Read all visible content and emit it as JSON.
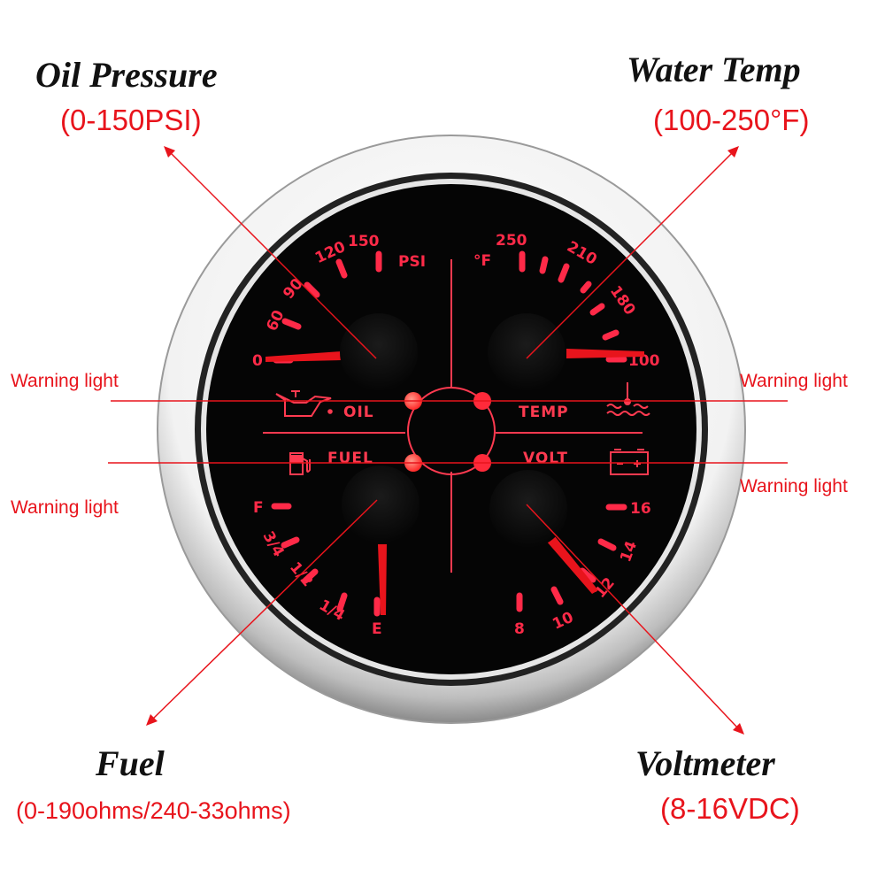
{
  "annotations": {
    "oil": {
      "title": "Oil Pressure",
      "range": "(0-150PSI)"
    },
    "water": {
      "title": "Water Temp",
      "range": "(100-250°F)"
    },
    "fuel": {
      "title": "Fuel",
      "range": "(0-190ohms/240-33ohms)"
    },
    "volt": {
      "title": "Voltmeter",
      "range": "(8-16VDC)"
    },
    "warning_label": "Warning light"
  },
  "gauge": {
    "oil": {
      "unit": "PSI",
      "ticks": [
        "0",
        "60",
        "90",
        "120",
        "150"
      ],
      "label": "OIL",
      "icon": "oil-can-icon"
    },
    "temp": {
      "unit": "°F",
      "ticks": [
        "100",
        "180",
        "210",
        "250"
      ],
      "label": "TEMP",
      "icon": "coolant-temp-icon"
    },
    "fuel": {
      "ticks": [
        "F",
        "3/4",
        "1/2",
        "1/4",
        "E"
      ],
      "label": "FUEL",
      "icon": "fuel-pump-icon"
    },
    "volt": {
      "ticks": [
        "16",
        "14",
        "12",
        "10",
        "8"
      ],
      "label": "VOLT",
      "icon": "battery-icon"
    }
  },
  "colors": {
    "accent": "#e8141c",
    "backlight": "#ff2a48",
    "face": "#050505"
  }
}
